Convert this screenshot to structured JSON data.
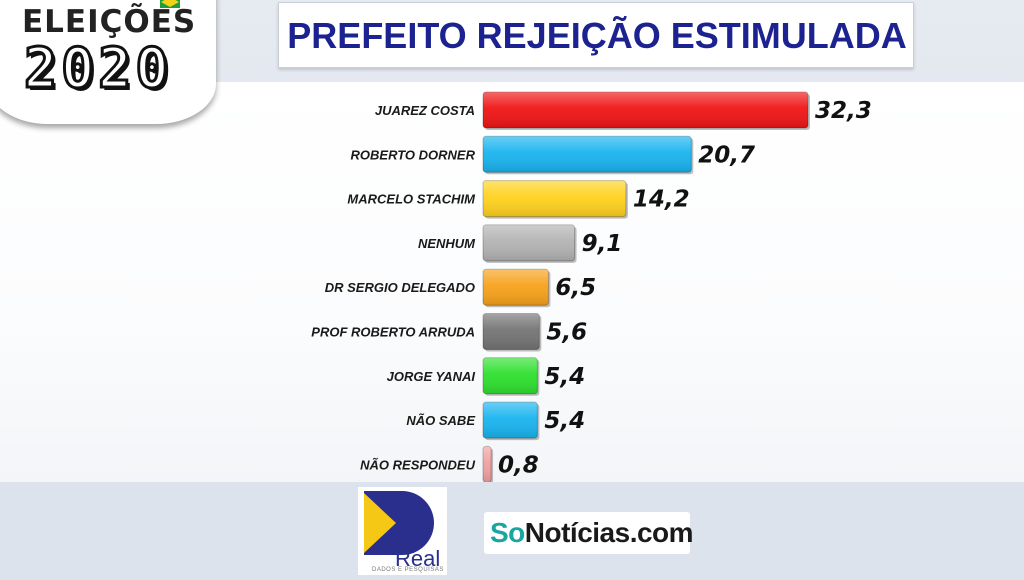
{
  "badge": {
    "top_text": "ELEIÇÕES",
    "year": "2020"
  },
  "title": "PREFEITO REJEIÇÃO ESTIMULADA",
  "chart_data": {
    "type": "bar",
    "orientation": "horizontal",
    "title": "PREFEITO REJEIÇÃO ESTIMULADA",
    "categories": [
      "JUAREZ COSTA",
      "ROBERTO DORNER",
      "MARCELO STACHIM",
      "NENHUM",
      "DR SERGIO DELEGADO",
      "PROF ROBERTO ARRUDA",
      "JORGE YANAI",
      "NÃO SABE",
      "NÃO RESPONDEU"
    ],
    "values": [
      32.3,
      20.7,
      14.2,
      9.1,
      6.5,
      5.6,
      5.4,
      5.4,
      0.8
    ],
    "value_labels": [
      "32,3",
      "20,7",
      "14,2",
      "9,1",
      "6,5",
      "5,6",
      "5,4",
      "5,4",
      "0,8"
    ],
    "colors": [
      "#f01515",
      "#19b4ef",
      "#ffd21e",
      "#b3b3b3",
      "#f7a21b",
      "#747474",
      "#2ee02e",
      "#19b4ef",
      "#f2a0a0"
    ],
    "xlim": [
      0,
      32.3
    ],
    "grid": false,
    "legend": "none"
  },
  "logos": {
    "real_word": "Real",
    "real_sub": "DADOS E PESQUISAS",
    "so_part": "So",
    "rest_part": "Notícias.com"
  }
}
